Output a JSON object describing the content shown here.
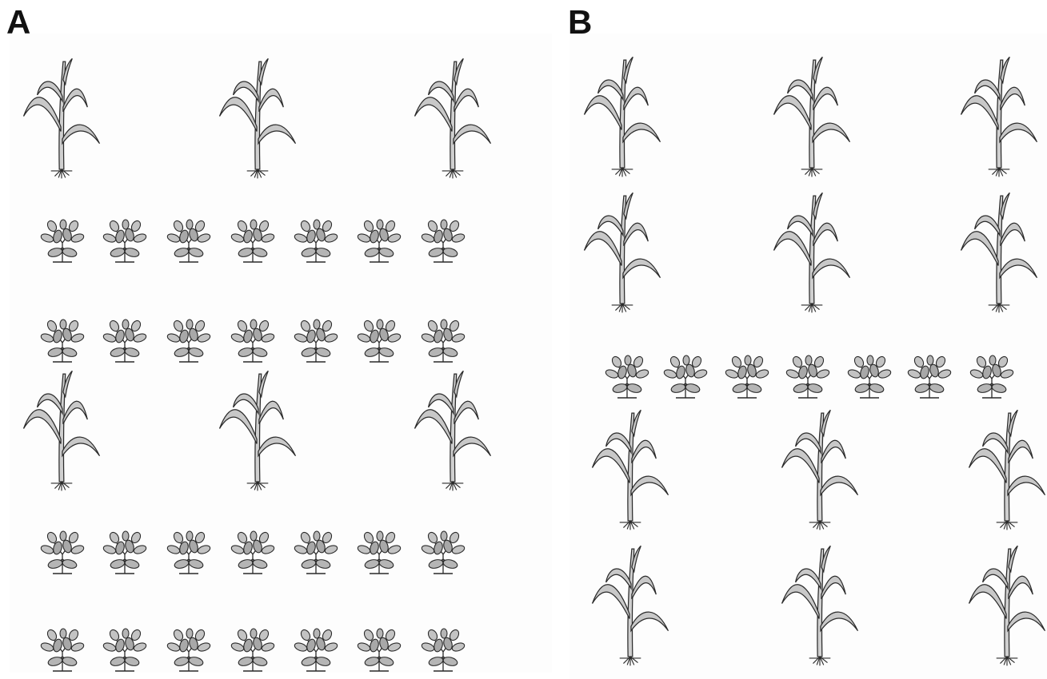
{
  "figure": {
    "colors": {
      "leaf_fill": "#c8c8c8",
      "leaf_fill_dark": "#a8a8a8",
      "stroke": "#2a2a2a",
      "background": "#ffffff"
    },
    "panels": [
      {
        "label": "A",
        "layout": [
          {
            "crop": "maize",
            "plants": 3
          },
          {
            "crop": "legume",
            "plants": 7
          },
          {
            "crop": "legume",
            "plants": 7
          },
          {
            "crop": "maize",
            "plants": 3
          },
          {
            "crop": "legume",
            "plants": 7
          },
          {
            "crop": "legume",
            "plants": 7
          }
        ]
      },
      {
        "label": "B",
        "layout": [
          {
            "crop": "maize",
            "plants": 3
          },
          {
            "crop": "maize",
            "plants": 3
          },
          {
            "crop": "legume",
            "plants": 7
          },
          {
            "crop": "maize",
            "plants": 3
          },
          {
            "crop": "maize",
            "plants": 3
          }
        ]
      }
    ]
  }
}
